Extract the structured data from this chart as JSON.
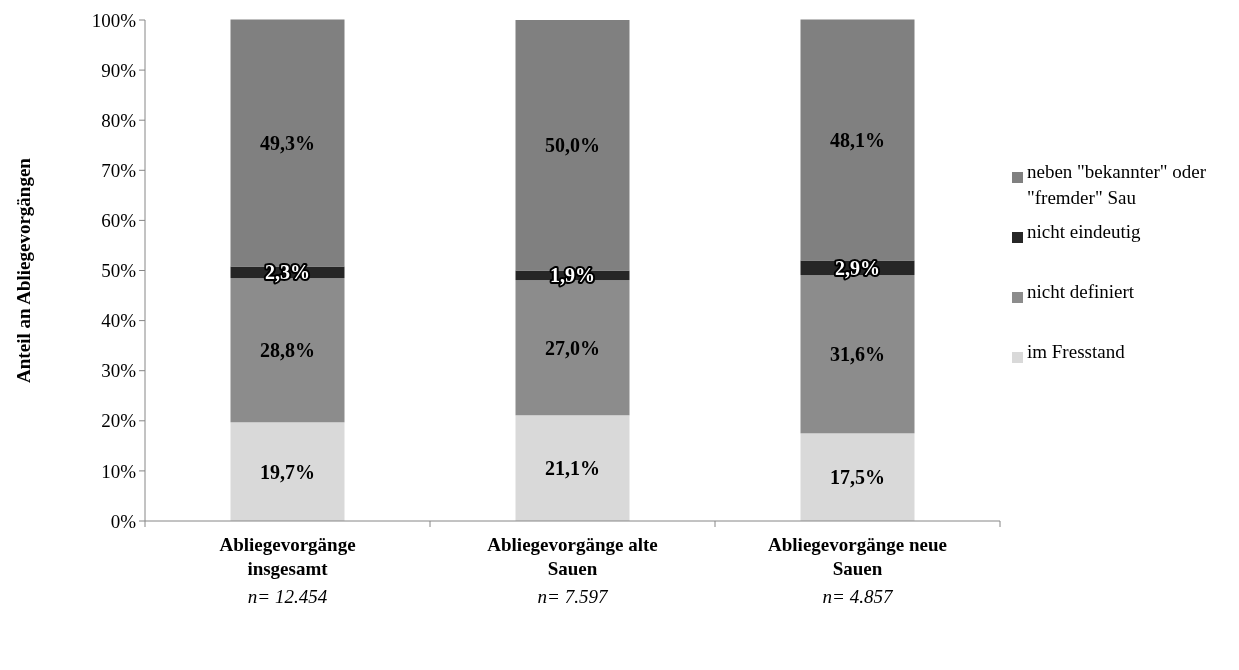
{
  "chart_data": {
    "type": "bar",
    "stacked": true,
    "ylabel": "Anteil an Abliegevorgängen",
    "categories": [
      "Abliegevorgänge insgesamt",
      "Abliegevorgänge alte Sauen",
      "Abliegevorgänge neue Sauen"
    ],
    "series": [
      {
        "name": "im Fresstand",
        "color": "#d9d9d9",
        "values": [
          19.7,
          21.1,
          17.5
        ],
        "value_labels": [
          "19,7%",
          "21,1%",
          "17,5%"
        ]
      },
      {
        "name": "nicht definiert",
        "color": "#8c8c8c",
        "values": [
          28.8,
          27.0,
          31.6
        ],
        "value_labels": [
          "28,8%",
          "27,0%",
          "31,6%"
        ]
      },
      {
        "name": "nicht eindeutig",
        "color": "#262626",
        "values": [
          2.3,
          1.9,
          2.9
        ],
        "value_labels": [
          "2,3%",
          "1,9%",
          "2,9%"
        ]
      },
      {
        "name": "neben \"bekannter\" oder \"fremder\" Sau",
        "color": "#808080",
        "values": [
          49.3,
          50.0,
          48.1
        ],
        "value_labels": [
          "49,3%",
          "50,0%",
          "48,1%"
        ]
      }
    ],
    "ylim": [
      0,
      100
    ],
    "yticks": [
      {
        "value": 0,
        "label": "0%"
      },
      {
        "value": 10,
        "label": "10%"
      },
      {
        "value": 20,
        "label": "20%"
      },
      {
        "value": 30,
        "label": "30%"
      },
      {
        "value": 40,
        "label": "40%"
      },
      {
        "value": 50,
        "label": "50%"
      },
      {
        "value": 60,
        "label": "60%"
      },
      {
        "value": 70,
        "label": "70%"
      },
      {
        "value": 80,
        "label": "80%"
      },
      {
        "value": 90,
        "label": "90%"
      },
      {
        "value": 100,
        "label": "100%"
      }
    ],
    "grid": false,
    "legend": "right",
    "annotations": [
      "n= 12.454",
      "n= 7.597",
      "n= 4.857"
    ]
  }
}
